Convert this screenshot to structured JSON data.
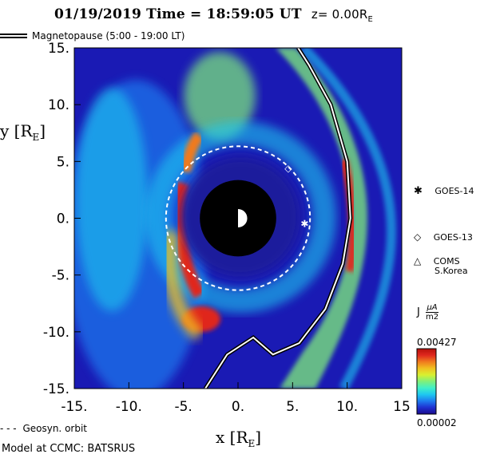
{
  "title": {
    "date_time": "01/19/2019 Time = 18:59:05 UT",
    "z": "z= 0.00R",
    "z_sub": "E"
  },
  "magnetopause_legend": "Magnetopause (5:00 - 19:00 LT)",
  "geosync_legend": "Geosyn. orbit",
  "credit": "Model at CCMC: BATSRUS",
  "colorbar": {
    "label_J": "J",
    "unit_num": "μA",
    "unit_den": "m2",
    "max": "0.00427",
    "min": "0.00002",
    "colors": [
      "#1a0a8c",
      "#1f2fd0",
      "#1e7cf0",
      "#1ec8f0",
      "#40f0c8",
      "#80f07a",
      "#d8f030",
      "#f0c020",
      "#f07a1e",
      "#e0281e",
      "#b4100a"
    ]
  },
  "satellites": [
    {
      "name": "GOES-14",
      "symbol": "✱"
    },
    {
      "name": "GOES-13",
      "symbol": "◇"
    },
    {
      "name": "COMS",
      "name2": "S.Korea",
      "symbol": "△"
    }
  ],
  "chart_data": {
    "type": "heatmap",
    "title": "01/19/2019 Time = 18:59:05 UT z= 0.00RE",
    "xlabel": "x [RE]",
    "ylabel": "y [RE]",
    "xlim": [
      -15,
      15
    ],
    "ylim": [
      -15,
      15
    ],
    "x_ticks": [
      "-15.",
      "-10.",
      "-5.",
      "0.",
      "5.",
      "10.",
      "15"
    ],
    "y_ticks": [
      "15.",
      "10.",
      "5.",
      "0.",
      "-5.",
      "-10.",
      "-15."
    ],
    "colorbar_range": [
      2e-05,
      0.00427
    ],
    "inner_boundary_radius": 3.5,
    "geosync_radius": 6.6,
    "satellite_positions": [
      {
        "name": "GOES-14",
        "x": 6.1,
        "y": -0.5
      },
      {
        "name": "GOES-13",
        "x": 4.6,
        "y": 4.4
      }
    ],
    "magnetopause": [
      [
        -3,
        -15
      ],
      [
        -1,
        -12
      ],
      [
        1.4,
        -10.5
      ],
      [
        3.2,
        -12
      ],
      [
        5.6,
        -11
      ],
      [
        8,
        -8
      ],
      [
        9.6,
        -4
      ],
      [
        10.3,
        0
      ],
      [
        10,
        5
      ],
      [
        8.5,
        10
      ],
      [
        6.5,
        13.5
      ],
      [
        5.5,
        15
      ]
    ]
  }
}
